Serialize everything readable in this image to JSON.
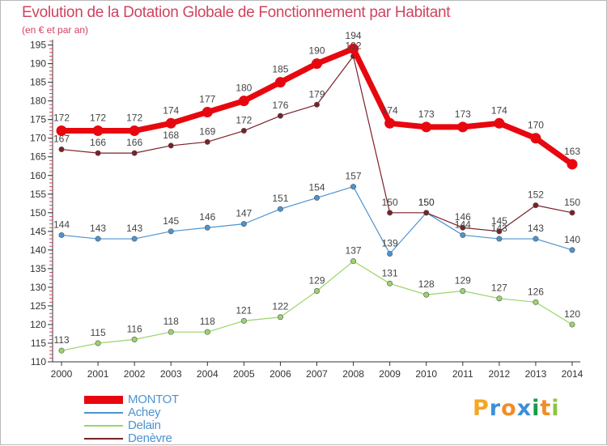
{
  "header": {
    "title": "Evolution de la Dotation Globale de Fonctionnement par Habitant",
    "subtitle": "(en € et par an)"
  },
  "branding": {
    "logo_text": "Proxiti",
    "logo_colors": [
      "#f5a623",
      "#3e8fd6",
      "#f28c28",
      "#3e8fd6",
      "#1a9a4a",
      "#f28c28",
      "#8cc63f"
    ]
  },
  "chart_data": {
    "type": "line",
    "x": [
      2000,
      2001,
      2002,
      2003,
      2004,
      2005,
      2006,
      2007,
      2008,
      2009,
      2010,
      2011,
      2012,
      2013,
      2014
    ],
    "ylim": [
      110,
      196
    ],
    "yticks": [
      110,
      115,
      120,
      125,
      130,
      135,
      140,
      145,
      150,
      155,
      160,
      165,
      170,
      175,
      180,
      185,
      190,
      195
    ],
    "grid": false,
    "legend_position": "bottom-left",
    "series": [
      {
        "name": "MONTOT",
        "color": "#e8070f",
        "values": [
          172,
          172,
          172,
          174,
          177,
          180,
          185,
          190,
          194,
          174,
          173,
          173,
          174,
          170,
          163
        ]
      },
      {
        "name": "Achey",
        "color": "#4e93cf",
        "values": [
          144,
          143,
          143,
          145,
          146,
          147,
          151,
          154,
          157,
          139,
          150,
          144,
          143,
          143,
          140
        ]
      },
      {
        "name": "Delain",
        "color": "#9ad46b",
        "values": [
          113,
          115,
          116,
          118,
          118,
          121,
          122,
          129,
          137,
          131,
          128,
          129,
          127,
          126,
          120
        ]
      },
      {
        "name": "Denèvre",
        "color": "#7a2128",
        "values": [
          167,
          166,
          166,
          168,
          169,
          172,
          176,
          179,
          192,
          150,
          150,
          146,
          145,
          152,
          150
        ]
      }
    ]
  }
}
